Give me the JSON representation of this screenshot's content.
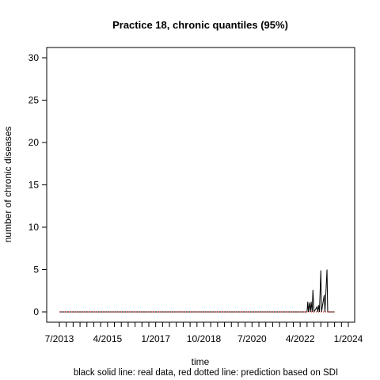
{
  "chart_data": {
    "type": "line",
    "title": "Practice 18, chronic quantiles (95%)",
    "xlabel": "time",
    "ylabel": "number of chronic diseases",
    "caption": "black solid line: real data, red dotted line: prediction based on SDI",
    "ylim": [
      0,
      31
    ],
    "y_ticks": [
      0,
      5,
      10,
      15,
      20,
      25,
      30
    ],
    "xlim_index": [
      0,
      42
    ],
    "x_ticks": [
      {
        "label": "7/2013"
      },
      {
        "label": "4/2015"
      },
      {
        "label": "1/2017"
      },
      {
        "label": "10/2018"
      },
      {
        "label": "7/2020"
      },
      {
        "label": "4/2022"
      },
      {
        "label": "1/2024"
      }
    ],
    "x_minor_tick_count": 43,
    "series": [
      {
        "name": "real data",
        "style": "solid",
        "color": "#000000",
        "points": [
          [
            0,
            0
          ],
          [
            36.0,
            0
          ],
          [
            36.1,
            1.2
          ],
          [
            36.2,
            0
          ],
          [
            36.35,
            1.1
          ],
          [
            36.5,
            0
          ],
          [
            36.6,
            1.2
          ],
          [
            36.75,
            0
          ],
          [
            36.85,
            2.6
          ],
          [
            37.0,
            0
          ],
          [
            37.45,
            0.6
          ],
          [
            37.55,
            0
          ],
          [
            37.7,
            0.8
          ],
          [
            37.8,
            0
          ],
          [
            38.0,
            4.9
          ],
          [
            38.1,
            0
          ],
          [
            38.5,
            2.0
          ],
          [
            38.6,
            0
          ],
          [
            38.9,
            5.0
          ],
          [
            39.0,
            0
          ],
          [
            40.0,
            0
          ]
        ]
      },
      {
        "name": "prediction based on SDI",
        "style": "dotted",
        "color": "#ff0000",
        "points": [
          [
            0,
            0
          ],
          [
            40.0,
            0
          ]
        ]
      }
    ]
  }
}
